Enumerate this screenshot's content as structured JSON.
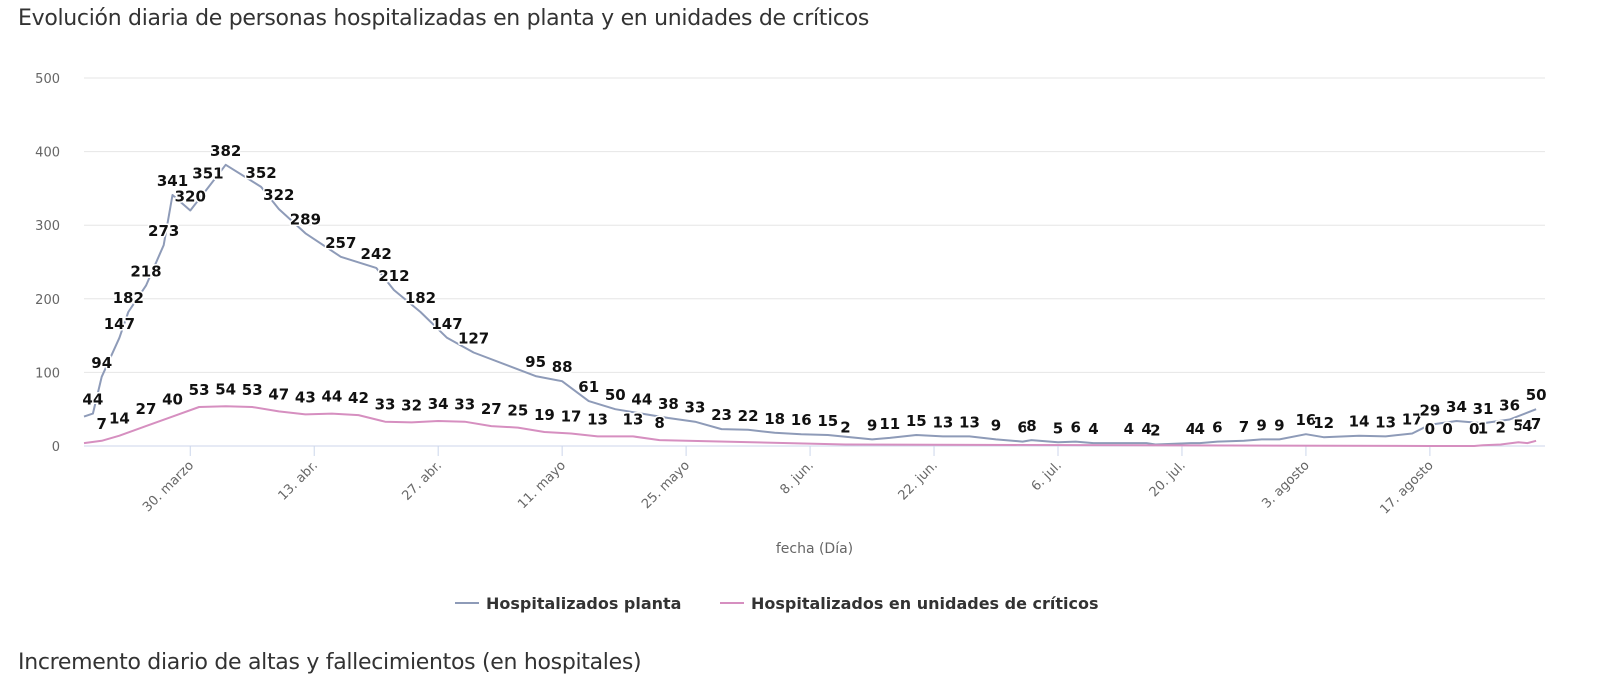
{
  "titles": {
    "chart": "Evolución diaria de personas hospitalizadas en planta y en unidades de críticos",
    "next_section": "Incremento diario de altas y fallecimientos (en hospitales)"
  },
  "chart_data": {
    "type": "line",
    "title": "Evolución diaria de personas hospitalizadas en planta y en unidades de críticos",
    "xlabel": "fecha (Día)",
    "ylabel": "",
    "ylim": [
      0,
      500
    ],
    "yticks": [
      0,
      100,
      200,
      300,
      400,
      500
    ],
    "xlim": [
      "03-18",
      "08-30"
    ],
    "xticks": [
      {
        "date": "03-30",
        "label": "30. marzo"
      },
      {
        "date": "04-13",
        "label": "13. abr."
      },
      {
        "date": "04-27",
        "label": "27. abr."
      },
      {
        "date": "05-11",
        "label": "11. mayo"
      },
      {
        "date": "05-25",
        "label": "25. mayo"
      },
      {
        "date": "06-08",
        "label": "8. jun."
      },
      {
        "date": "06-22",
        "label": "22. jun."
      },
      {
        "date": "07-06",
        "label": "6. jul."
      },
      {
        "date": "07-20",
        "label": "20. jul."
      },
      {
        "date": "08-03",
        "label": "3. agosto"
      },
      {
        "date": "08-17",
        "label": "17. agosto"
      }
    ],
    "grid": true,
    "legend_position": "bottom",
    "series": [
      {
        "name": "Hospitalizados planta",
        "color": "#8e9bb8",
        "points": [
          [
            "03-18",
            40
          ],
          [
            "03-19",
            44
          ],
          [
            "03-20",
            94
          ],
          [
            "03-22",
            147
          ],
          [
            "03-23",
            182
          ],
          [
            "03-25",
            218
          ],
          [
            "03-27",
            273
          ],
          [
            "03-28",
            341
          ],
          [
            "03-30",
            320
          ],
          [
            "04-01",
            351
          ],
          [
            "04-03",
            382
          ],
          [
            "04-07",
            352
          ],
          [
            "04-09",
            322
          ],
          [
            "04-12",
            289
          ],
          [
            "04-16",
            257
          ],
          [
            "04-20",
            242
          ],
          [
            "04-22",
            212
          ],
          [
            "04-25",
            182
          ],
          [
            "04-28",
            147
          ],
          [
            "05-01",
            127
          ],
          [
            "05-08",
            95
          ],
          [
            "05-11",
            88
          ],
          [
            "05-14",
            61
          ],
          [
            "05-17",
            50
          ],
          [
            "05-20",
            44
          ],
          [
            "05-23",
            38
          ],
          [
            "05-26",
            33
          ],
          [
            "05-29",
            23
          ],
          [
            "06-01",
            22
          ],
          [
            "06-04",
            18
          ],
          [
            "06-07",
            16
          ],
          [
            "06-10",
            15
          ],
          [
            "06-15",
            9
          ],
          [
            "06-17",
            11
          ],
          [
            "06-20",
            15
          ],
          [
            "06-23",
            13
          ],
          [
            "06-26",
            13
          ],
          [
            "06-29",
            9
          ],
          [
            "07-02",
            6
          ],
          [
            "07-03",
            8
          ],
          [
            "07-06",
            5
          ],
          [
            "07-08",
            6
          ],
          [
            "07-10",
            4
          ],
          [
            "07-14",
            4
          ],
          [
            "07-16",
            4
          ],
          [
            "07-17",
            2
          ],
          [
            "07-21",
            4
          ],
          [
            "07-22",
            4
          ],
          [
            "07-24",
            6
          ],
          [
            "07-27",
            7
          ],
          [
            "07-29",
            9
          ],
          [
            "07-31",
            9
          ],
          [
            "08-03",
            16
          ],
          [
            "08-05",
            12
          ],
          [
            "08-09",
            14
          ],
          [
            "08-12",
            13
          ],
          [
            "08-15",
            17
          ],
          [
            "08-17",
            29
          ],
          [
            "08-20",
            34
          ],
          [
            "08-23",
            31
          ],
          [
            "08-26",
            36
          ],
          [
            "08-29",
            50
          ]
        ]
      },
      {
        "name": "Hospitalizados en unidades de críticos",
        "color": "#d68fc0",
        "points": [
          [
            "03-18",
            4
          ],
          [
            "03-20",
            7
          ],
          [
            "03-22",
            14
          ],
          [
            "03-25",
            27
          ],
          [
            "03-28",
            40
          ],
          [
            "03-31",
            53
          ],
          [
            "04-03",
            54
          ],
          [
            "04-06",
            53
          ],
          [
            "04-09",
            47
          ],
          [
            "04-12",
            43
          ],
          [
            "04-15",
            44
          ],
          [
            "04-18",
            42
          ],
          [
            "04-21",
            33
          ],
          [
            "04-24",
            32
          ],
          [
            "04-27",
            34
          ],
          [
            "04-30",
            33
          ],
          [
            "05-03",
            27
          ],
          [
            "05-06",
            25
          ],
          [
            "05-09",
            19
          ],
          [
            "05-12",
            17
          ],
          [
            "05-15",
            13
          ],
          [
            "05-19",
            13
          ],
          [
            "05-22",
            8
          ],
          [
            "06-12",
            2
          ],
          [
            "08-17",
            0
          ],
          [
            "08-19",
            0
          ],
          [
            "08-22",
            0
          ],
          [
            "08-23",
            1
          ],
          [
            "08-25",
            2
          ],
          [
            "08-27",
            5
          ],
          [
            "08-28",
            4
          ],
          [
            "08-29",
            7
          ]
        ]
      }
    ]
  }
}
